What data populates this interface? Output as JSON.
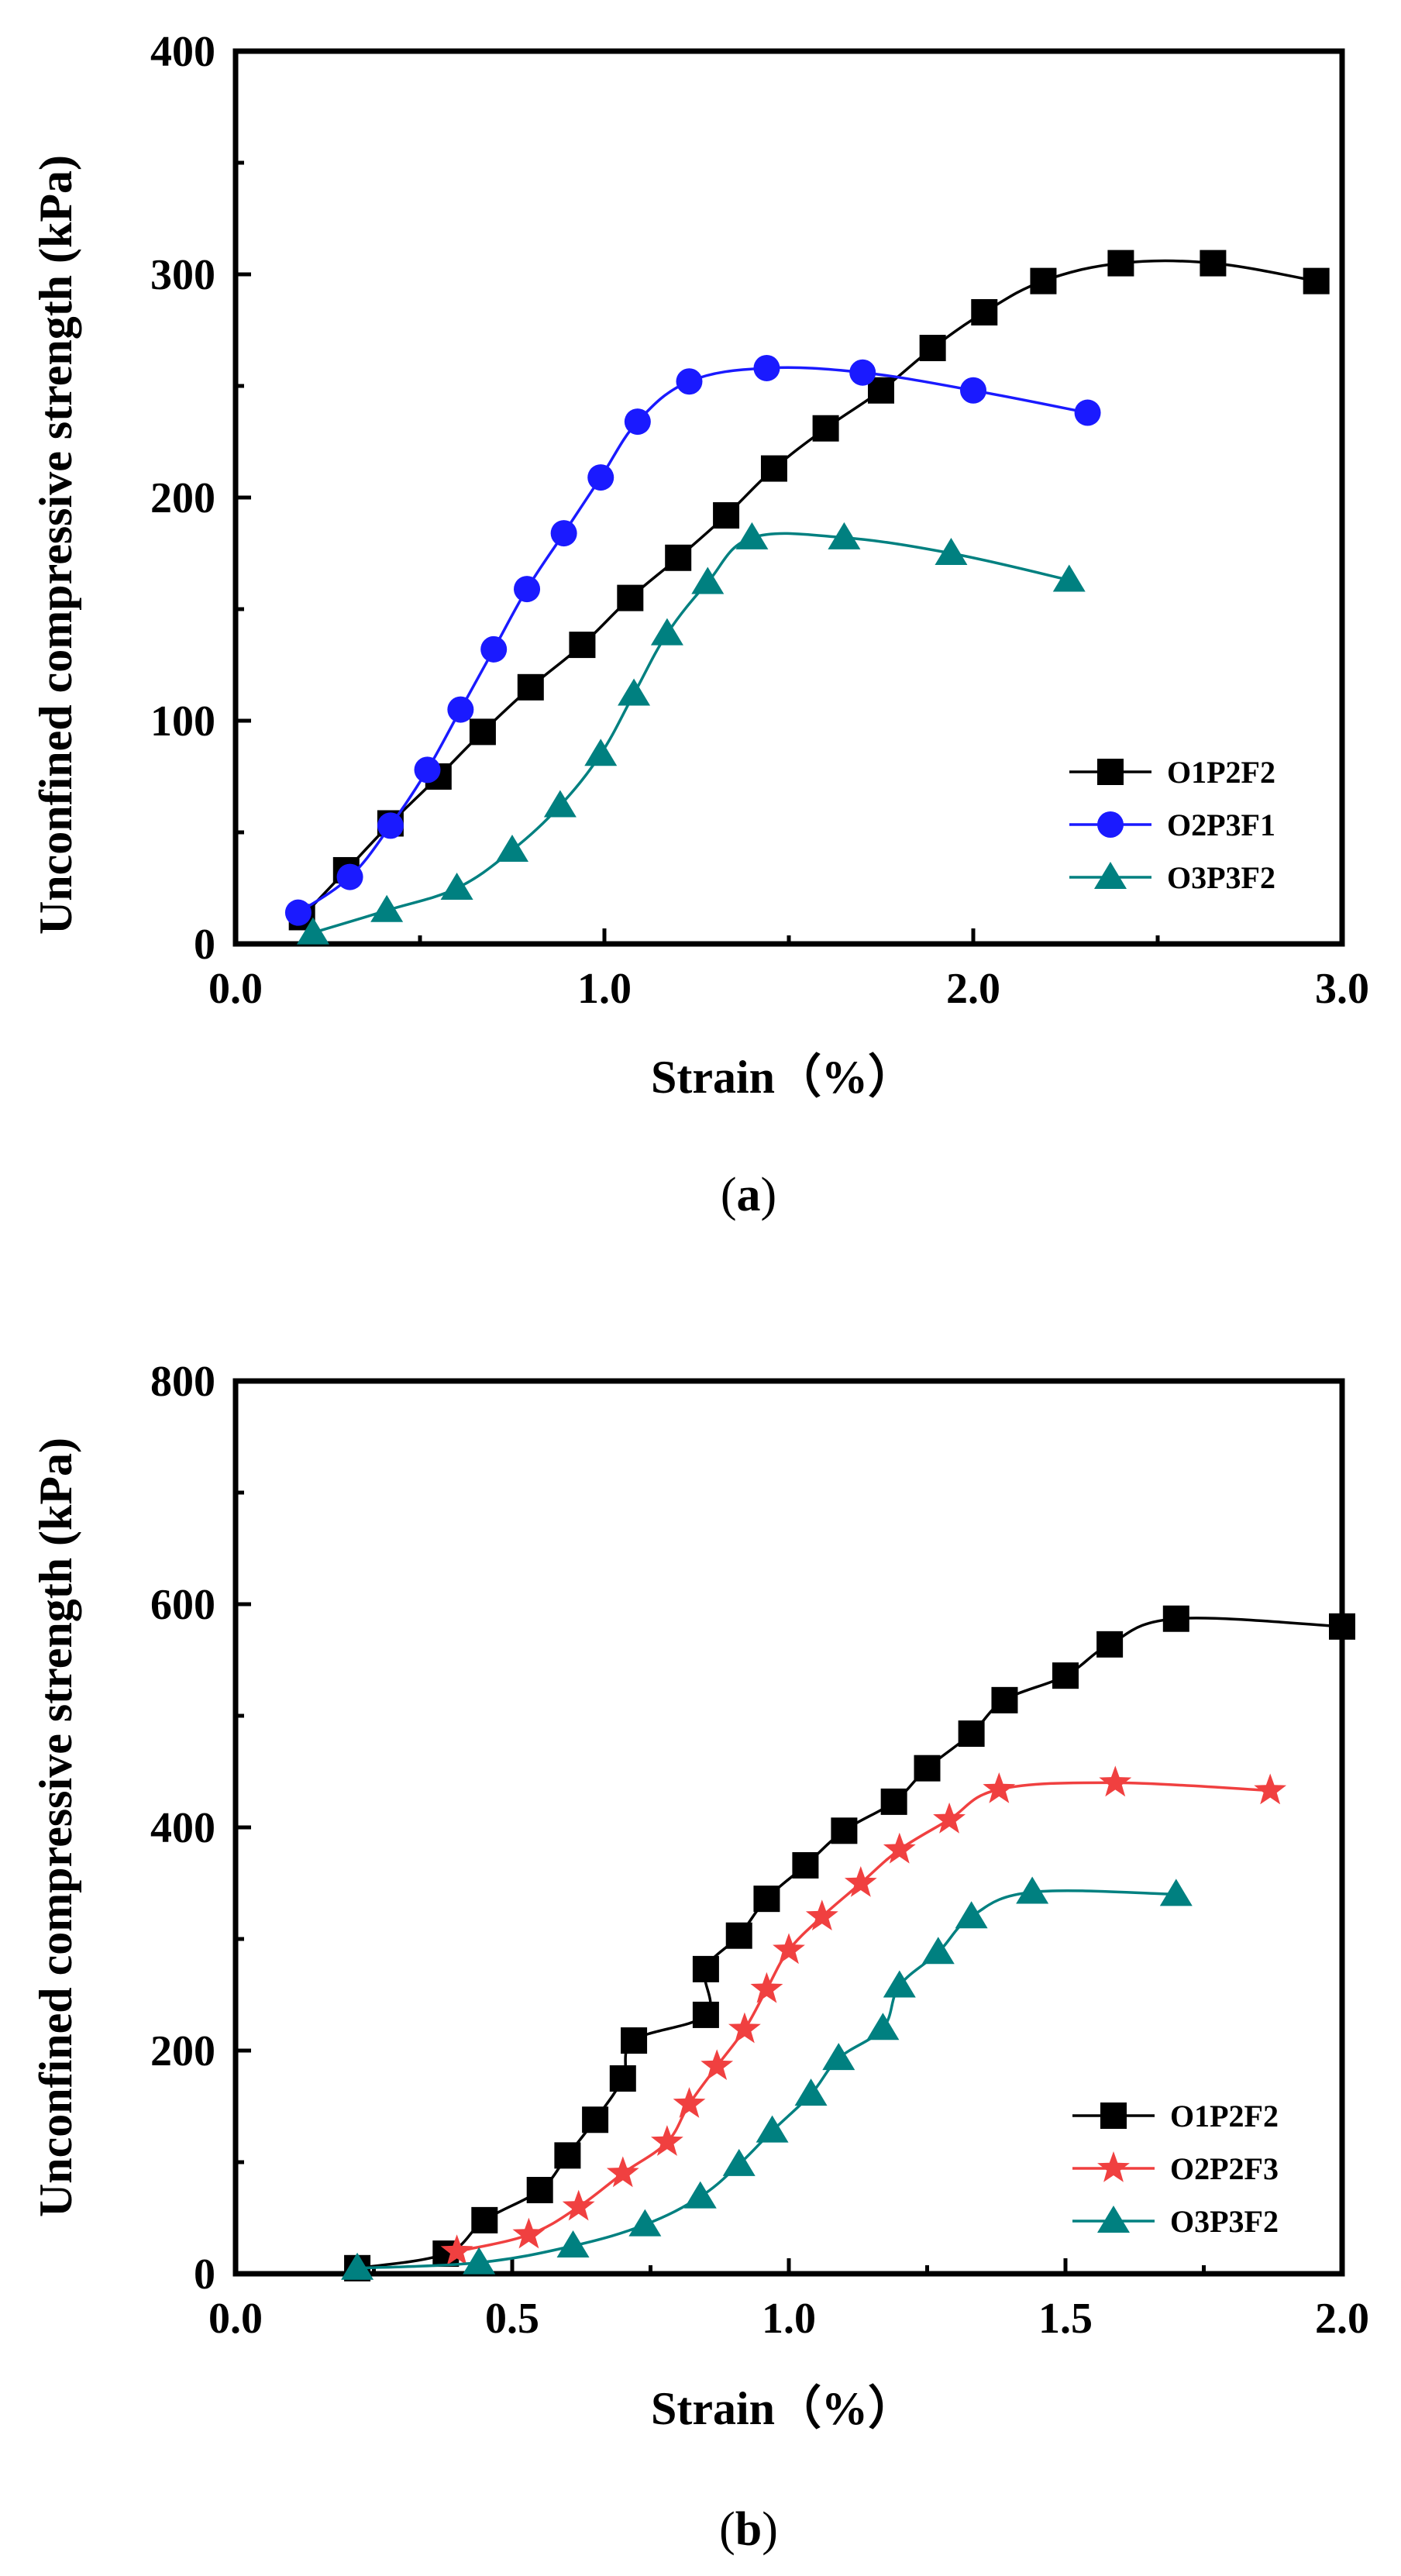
{
  "chart_data": [
    {
      "type": "line",
      "panel_label": "a",
      "xlabel": "Strain（%）",
      "ylabel": "Unconfined compressive strength (kPa)",
      "xlim": [
        0,
        3.0
      ],
      "ylim": [
        0,
        400
      ],
      "x_ticks": [
        "0.0",
        "1.0",
        "2.0",
        "3.0"
      ],
      "y_ticks": [
        "0",
        "100",
        "200",
        "300",
        "400"
      ],
      "grid": false,
      "legend_position": "bottom-right",
      "series": [
        {
          "name": "O1P2F2",
          "color": "#000000",
          "marker": "square",
          "points": [
            [
              0.18,
              12
            ],
            [
              0.3,
              33
            ],
            [
              0.42,
              54
            ],
            [
              0.55,
              75
            ],
            [
              0.67,
              95
            ],
            [
              0.8,
              115
            ],
            [
              0.94,
              134
            ],
            [
              1.07,
              155
            ],
            [
              1.2,
              173
            ],
            [
              1.33,
              192
            ],
            [
              1.46,
              213
            ],
            [
              1.6,
              231
            ],
            [
              1.75,
              248
            ],
            [
              1.89,
              267
            ],
            [
              2.03,
              283
            ],
            [
              2.19,
              297
            ],
            [
              2.4,
              305
            ],
            [
              2.65,
              305
            ],
            [
              2.93,
              297
            ]
          ]
        },
        {
          "name": "O2P3F1",
          "color": "#1a1aff",
          "marker": "circle",
          "points": [
            [
              0.17,
              14
            ],
            [
              0.31,
              30
            ],
            [
              0.42,
              53
            ],
            [
              0.52,
              78
            ],
            [
              0.61,
              105
            ],
            [
              0.7,
              132
            ],
            [
              0.79,
              159
            ],
            [
              0.89,
              184
            ],
            [
              0.99,
              209
            ],
            [
              1.09,
              234
            ],
            [
              1.23,
              252
            ],
            [
              1.44,
              258
            ],
            [
              1.7,
              256
            ],
            [
              2.0,
              248
            ],
            [
              2.31,
              238
            ]
          ]
        },
        {
          "name": "O3P3F2",
          "color": "#008080",
          "marker": "triangle",
          "points": [
            [
              0.21,
              5
            ],
            [
              0.41,
              15
            ],
            [
              0.6,
              25
            ],
            [
              0.75,
              42
            ],
            [
              0.88,
              62
            ],
            [
              0.99,
              85
            ],
            [
              1.08,
              112
            ],
            [
              1.17,
              139
            ],
            [
              1.28,
              162
            ],
            [
              1.4,
              182
            ],
            [
              1.65,
              182
            ],
            [
              1.94,
              175
            ],
            [
              2.26,
              163
            ]
          ]
        }
      ]
    },
    {
      "type": "line",
      "panel_label": "b",
      "xlabel": "Strain（%）",
      "ylabel": "Unconfined compressive strength (kPa)",
      "xlim": [
        0,
        2.0
      ],
      "ylim": [
        0,
        800
      ],
      "x_ticks": [
        "0.0",
        "0.5",
        "1.0",
        "1.5",
        "2.0"
      ],
      "y_ticks": [
        "0",
        "200",
        "400",
        "600",
        "800"
      ],
      "grid": false,
      "legend_position": "bottom-right",
      "series": [
        {
          "name": "O1P2F2",
          "color": "#000000",
          "marker": "square",
          "points": [
            [
              0.22,
              5
            ],
            [
              0.38,
              18
            ],
            [
              0.45,
              48
            ],
            [
              0.55,
              75
            ],
            [
              0.6,
              106
            ],
            [
              0.65,
              138
            ],
            [
              0.7,
              175
            ],
            [
              0.72,
              209
            ],
            [
              0.85,
              232
            ],
            [
              0.85,
              273
            ],
            [
              0.91,
              303
            ],
            [
              0.96,
              336
            ],
            [
              1.03,
              366
            ],
            [
              1.1,
              397
            ],
            [
              1.19,
              423
            ],
            [
              1.25,
              453
            ],
            [
              1.33,
              484
            ],
            [
              1.39,
              514
            ],
            [
              1.5,
              536
            ],
            [
              1.58,
              564
            ],
            [
              1.7,
              587
            ],
            [
              2.0,
              580
            ]
          ]
        },
        {
          "name": "O2P2F3",
          "color": "#f04040",
          "marker": "star",
          "points": [
            [
              0.4,
              20
            ],
            [
              0.53,
              35
            ],
            [
              0.62,
              60
            ],
            [
              0.7,
              90
            ],
            [
              0.78,
              118
            ],
            [
              0.82,
              152
            ],
            [
              0.87,
              186
            ],
            [
              0.92,
              219
            ],
            [
              0.96,
              255
            ],
            [
              1.0,
              290
            ],
            [
              1.06,
              320
            ],
            [
              1.13,
              350
            ],
            [
              1.2,
              380
            ],
            [
              1.29,
              407
            ],
            [
              1.38,
              434
            ],
            [
              1.59,
              440
            ],
            [
              1.87,
              433
            ]
          ]
        },
        {
          "name": "O3P3F2",
          "color": "#008080",
          "marker": "triangle",
          "points": [
            [
              0.22,
              5
            ],
            [
              0.44,
              10
            ],
            [
              0.61,
              25
            ],
            [
              0.74,
              44
            ],
            [
              0.84,
              69
            ],
            [
              0.91,
              98
            ],
            [
              0.97,
              128
            ],
            [
              1.04,
              161
            ],
            [
              1.09,
              193
            ],
            [
              1.17,
              220
            ],
            [
              1.2,
              258
            ],
            [
              1.27,
              288
            ],
            [
              1.33,
              320
            ],
            [
              1.44,
              342
            ],
            [
              1.7,
              340
            ]
          ]
        }
      ]
    }
  ]
}
